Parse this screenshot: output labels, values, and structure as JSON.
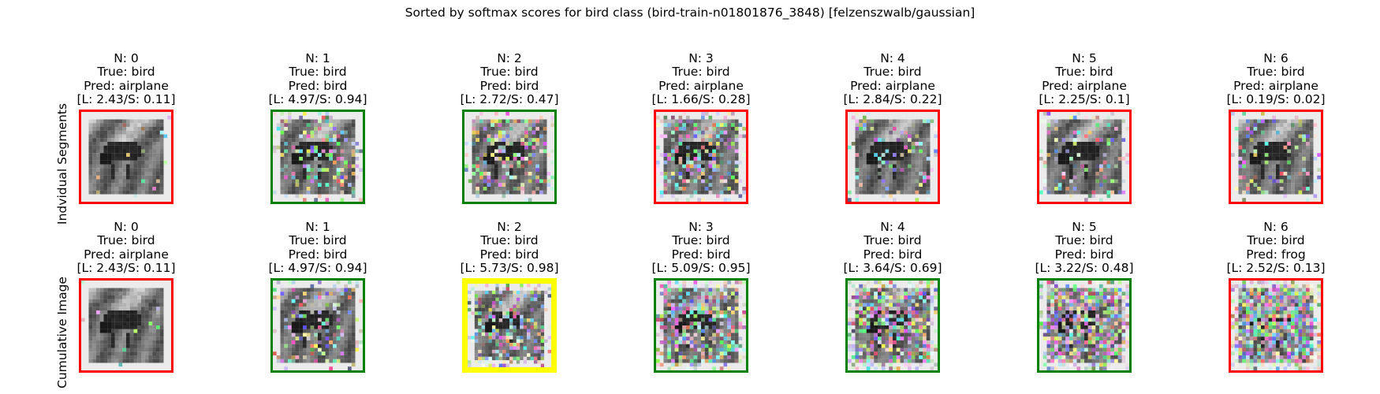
{
  "chart_data": {
    "type": "image-grid",
    "title": "Sorted by softmax scores for bird class (bird-train-n01801876_3848) [felzenszwalb/gaussian]",
    "rows": [
      {
        "label": "Indvidual Segments",
        "panels": [
          {
            "n": "N: 0",
            "true": "True: bird",
            "pred": "Pred: airplane",
            "score": "[L: 2.43/S: 0.11]",
            "border": "#ff0000",
            "noise": 0.02,
            "highlight": false
          },
          {
            "n": "N: 1",
            "true": "True: bird",
            "pred": "Pred: bird",
            "score": "[L: 4.97/S: 0.94]",
            "border": "#008000",
            "noise": 0.25,
            "highlight": false
          },
          {
            "n": "N: 2",
            "true": "True: bird",
            "pred": "Pred: bird",
            "score": "[L: 2.72/S: 0.47]",
            "border": "#008000",
            "noise": 0.3,
            "highlight": false
          },
          {
            "n": "N: 3",
            "true": "True: bird",
            "pred": "Pred: airplane",
            "score": "[L: 1.66/S: 0.28]",
            "border": "#ff0000",
            "noise": 0.35,
            "highlight": false
          },
          {
            "n": "N: 4",
            "true": "True: bird",
            "pred": "Pred: airplane",
            "score": "[L: 2.84/S: 0.22]",
            "border": "#ff0000",
            "noise": 0.2,
            "highlight": false
          },
          {
            "n": "N: 5",
            "true": "True: bird",
            "pred": "Pred: airplane",
            "score": "[L: 2.25/S: 0.1]",
            "border": "#ff0000",
            "noise": 0.2,
            "highlight": false
          },
          {
            "n": "N: 6",
            "true": "True: bird",
            "pred": "Pred: airplane",
            "score": "[L: 0.19/S: 0.02]",
            "border": "#ff0000",
            "noise": 0.15,
            "highlight": false
          }
        ]
      },
      {
        "label": "Cumulative Image",
        "panels": [
          {
            "n": "N: 0",
            "true": "True: bird",
            "pred": "Pred: airplane",
            "score": "[L: 2.43/S: 0.11]",
            "border": "#ff0000",
            "noise": 0.02,
            "highlight": false
          },
          {
            "n": "N: 1",
            "true": "True: bird",
            "pred": "Pred: bird",
            "score": "[L: 4.97/S: 0.94]",
            "border": "#008000",
            "noise": 0.25,
            "highlight": false
          },
          {
            "n": "N: 2",
            "true": "True: bird",
            "pred": "Pred: bird",
            "score": "[L: 5.73/S: 0.98]",
            "border": "#ffff00",
            "noise": 0.35,
            "highlight": true
          },
          {
            "n": "N: 3",
            "true": "True: bird",
            "pred": "Pred: bird",
            "score": "[L: 5.09/S: 0.95]",
            "border": "#008000",
            "noise": 0.5,
            "highlight": false
          },
          {
            "n": "N: 4",
            "true": "True: bird",
            "pred": "Pred: bird",
            "score": "[L: 3.64/S: 0.69]",
            "border": "#008000",
            "noise": 0.6,
            "highlight": false
          },
          {
            "n": "N: 5",
            "true": "True: bird",
            "pred": "Pred: bird",
            "score": "[L: 3.22/S: 0.48]",
            "border": "#008000",
            "noise": 0.7,
            "highlight": false
          },
          {
            "n": "N: 6",
            "true": "True: bird",
            "pred": "Pred: frog",
            "score": "[L: 2.52/S: 0.13]",
            "border": "#ff0000",
            "noise": 0.8,
            "highlight": false
          }
        ]
      }
    ]
  }
}
